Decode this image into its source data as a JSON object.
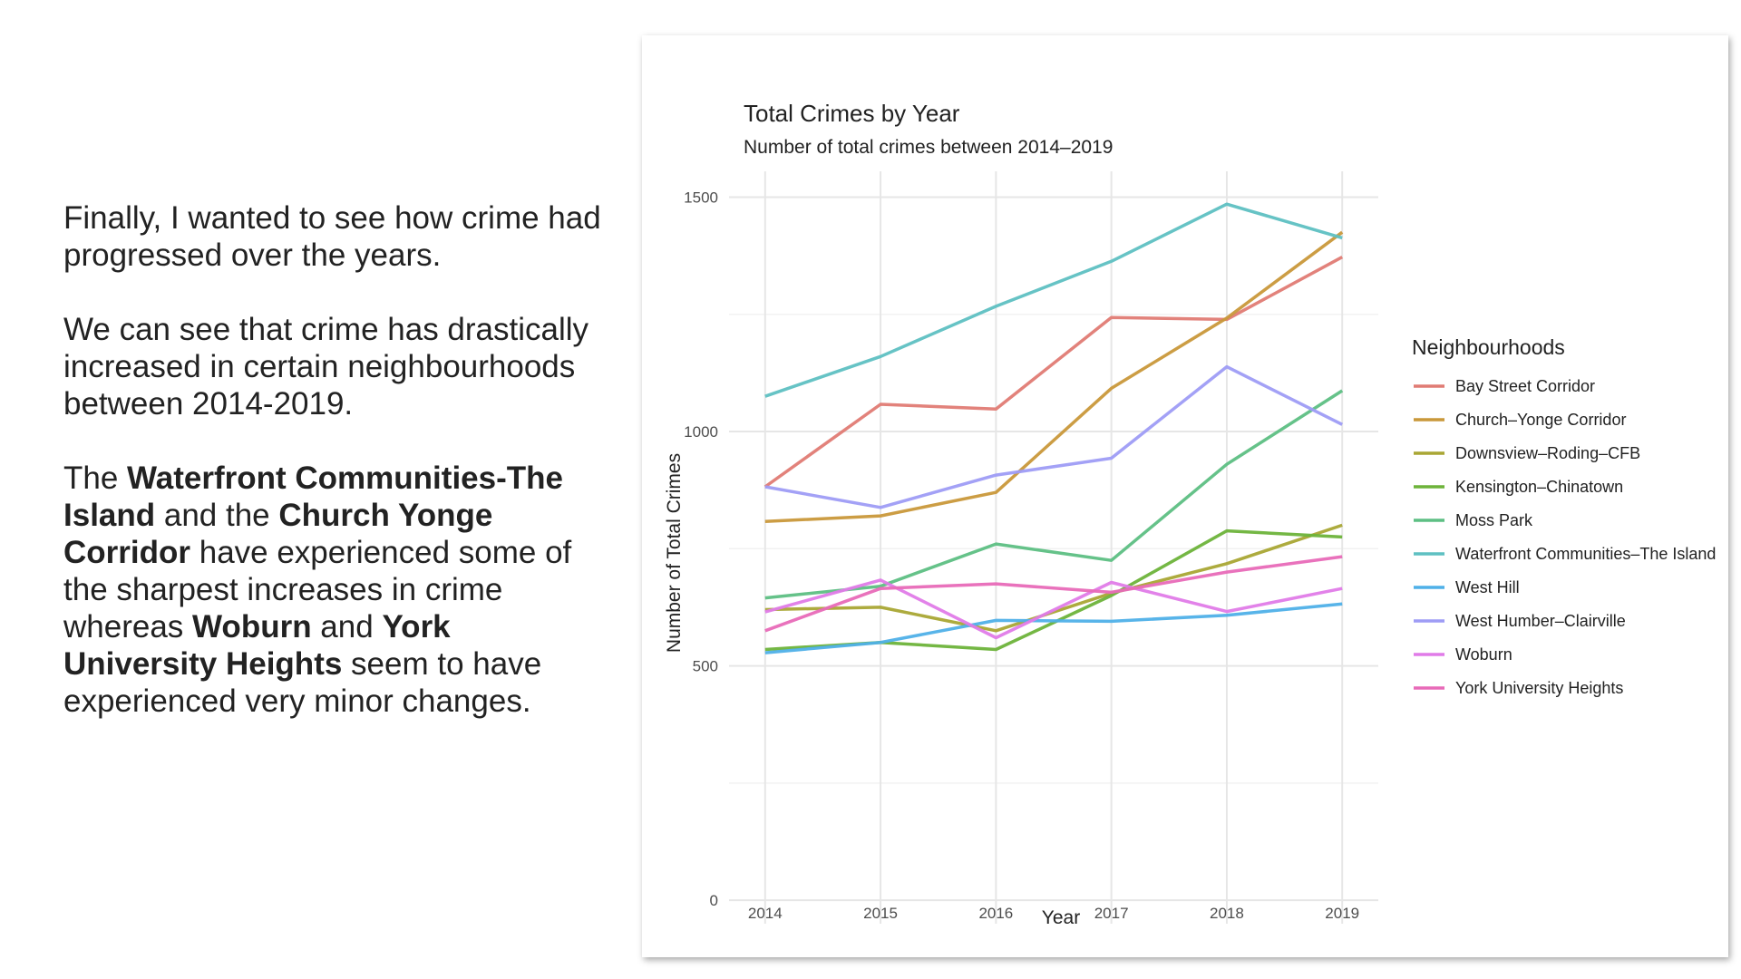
{
  "text": {
    "p1": "Finally, I wanted to see how crime had progressed over the years.",
    "p2": "We can see that crime has drastically increased in certain neighbourhoods between 2014-2019.",
    "p3": {
      "t1": "The ",
      "b1": "Waterfront Communities-The Island",
      "t2": " and the ",
      "b2": "Church Yonge Corridor",
      "t3": " have experienced some of the sharpest increases in crime whereas ",
      "b3": "Woburn",
      "t4": " and ",
      "b4": "York University Heights",
      "t5": " seem to have experienced very minor changes."
    }
  },
  "chart_data": {
    "type": "line",
    "title": "Total Crimes by Year",
    "subtitle": "Number of total crimes between 2014–2019",
    "xlabel": "Year",
    "ylabel": "Number of Total Crimes",
    "x": [
      2014,
      2015,
      2016,
      2017,
      2018,
      2019
    ],
    "x_tick_labels": [
      "2014",
      "2015",
      "2016",
      "2017",
      "2018",
      "2019"
    ],
    "y_ticks": [
      0,
      500,
      1000,
      1500
    ],
    "y_tick_labels": [
      "0",
      "500",
      "1000",
      "1500"
    ],
    "ylim": [
      -50,
      1555
    ],
    "grid": true,
    "legend_title": "Neighbourhoods",
    "legend_position": "right",
    "series": [
      {
        "name": "Bay Street Corridor",
        "color": "#E07B74",
        "values": [
          882,
          1058,
          1048,
          1243,
          1239,
          1372
        ]
      },
      {
        "name": "Church–Yonge Corridor",
        "color": "#C9983A",
        "values": [
          808,
          820,
          870,
          1092,
          1242,
          1425
        ]
      },
      {
        "name": "Downsview–Roding–CFB",
        "color": "#A9A634",
        "values": [
          620,
          625,
          575,
          655,
          718,
          800
        ]
      },
      {
        "name": "Kensington–Chinatown",
        "color": "#6DB33A",
        "values": [
          535,
          550,
          535,
          650,
          788,
          775
        ]
      },
      {
        "name": "Moss Park",
        "color": "#5DBF83",
        "values": [
          645,
          670,
          760,
          725,
          930,
          1087
        ]
      },
      {
        "name": "Waterfront Communities–The Island",
        "color": "#5EC0C2",
        "values": [
          1075,
          1160,
          1267,
          1363,
          1485,
          1413
        ]
      },
      {
        "name": "West Hill",
        "color": "#4FB0E8",
        "values": [
          528,
          550,
          597,
          595,
          608,
          632
        ]
      },
      {
        "name": "West Humber–Clairville",
        "color": "#9E9CF5",
        "values": [
          882,
          838,
          907,
          943,
          1138,
          1015
        ]
      },
      {
        "name": "Woburn",
        "color": "#E07BE8",
        "values": [
          615,
          683,
          560,
          678,
          616,
          665
        ]
      },
      {
        "name": "York University Heights",
        "color": "#E86AB8",
        "values": [
          575,
          665,
          675,
          657,
          700,
          733
        ]
      }
    ]
  }
}
